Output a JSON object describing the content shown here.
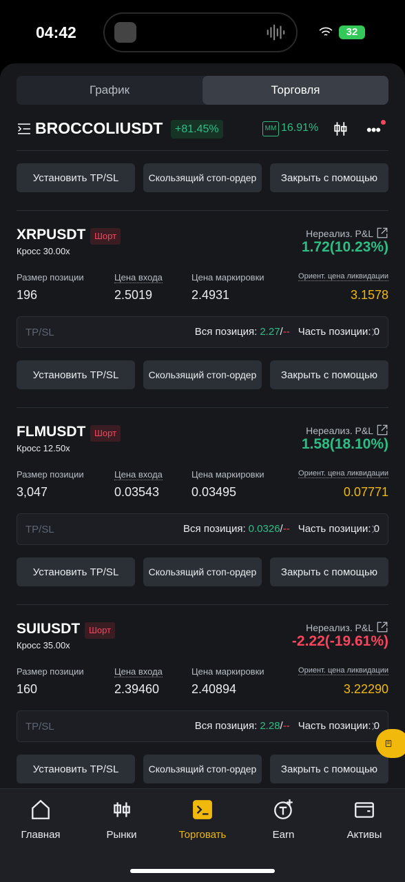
{
  "status_bar": {
    "time": "04:42",
    "battery": "32"
  },
  "tabs": [
    "График",
    "Торговля"
  ],
  "symbol": {
    "name": "BROCCOLIUSDT",
    "change": "+81.45%",
    "mm_label": "MM",
    "mm_value": "16.91%"
  },
  "top_buttons": [
    "Установить TP/SL",
    "Скользящий стоп-ордер",
    "Закрыть с помощью"
  ],
  "positions": [
    {
      "name": "XRPUSDT",
      "side": "Шорт",
      "leverage": "Кросс 30.00x",
      "pnl_label": "Нереализ. P&L",
      "pnl": "1.72(10.23%)",
      "pnl_positive": true,
      "fields": [
        {
          "label": "Размер позиции",
          "value": "196"
        },
        {
          "label": "Цена входа",
          "value": "2.5019"
        },
        {
          "label": "Цена маркировки",
          "value": "2.4931"
        },
        {
          "label": "Ориент. цена ликвидации",
          "value": "3.1578"
        }
      ],
      "tpsl_label": "TP/SL",
      "full_label": "Вся позиция:",
      "full_tp": "2.27",
      "sep": "/",
      "full_sl": "--",
      "part": "Часть позиции: 0",
      "buttons": [
        "Установить TP/SL",
        "Скользящий стоп-ордер",
        "Закрыть с помощью"
      ]
    },
    {
      "name": "FLMUSDT",
      "side": "Шорт",
      "leverage": "Кросс 12.50x",
      "pnl_label": "Нереализ. P&L",
      "pnl": "1.58(18.10%)",
      "pnl_positive": true,
      "fields": [
        {
          "label": "Размер позиции",
          "value": "3,047"
        },
        {
          "label": "Цена входа",
          "value": "0.03543"
        },
        {
          "label": "Цена маркировки",
          "value": "0.03495"
        },
        {
          "label": "Ориент. цена ликвидации",
          "value": "0.07771"
        }
      ],
      "tpsl_label": "TP/SL",
      "full_label": "Вся позиция:",
      "full_tp": "0.0326",
      "sep": "/",
      "full_sl": "--",
      "part": "Часть позиции: 0",
      "buttons": [
        "Установить TP/SL",
        "Скользящий стоп-ордер",
        "Закрыть с помощью"
      ]
    },
    {
      "name": "SUIUSDT",
      "side": "Шорт",
      "leverage": "Кросс 35.00x",
      "pnl_label": "Нереализ. P&L",
      "pnl": "-2.22(-19.61%)",
      "pnl_positive": false,
      "fields": [
        {
          "label": "Размер позиции",
          "value": "160"
        },
        {
          "label": "Цена входа",
          "value": "2.39460"
        },
        {
          "label": "Цена маркировки",
          "value": "2.40894"
        },
        {
          "label": "Ориент. цена ликвидации",
          "value": "3.22290"
        }
      ],
      "tpsl_label": "TP/SL",
      "full_label": "Вся позиция:",
      "full_tp": "2.28",
      "sep": "/",
      "full_sl": "--",
      "part": "Часть позиции: 0",
      "buttons": [
        "Установить TP/SL",
        "Скользящий стоп-ордер",
        "Закрыть с помощью"
      ]
    }
  ],
  "nav": [
    "Главная",
    "Рынки",
    "Торговать",
    "Earn",
    "Активы"
  ],
  "nav_active": 2
}
